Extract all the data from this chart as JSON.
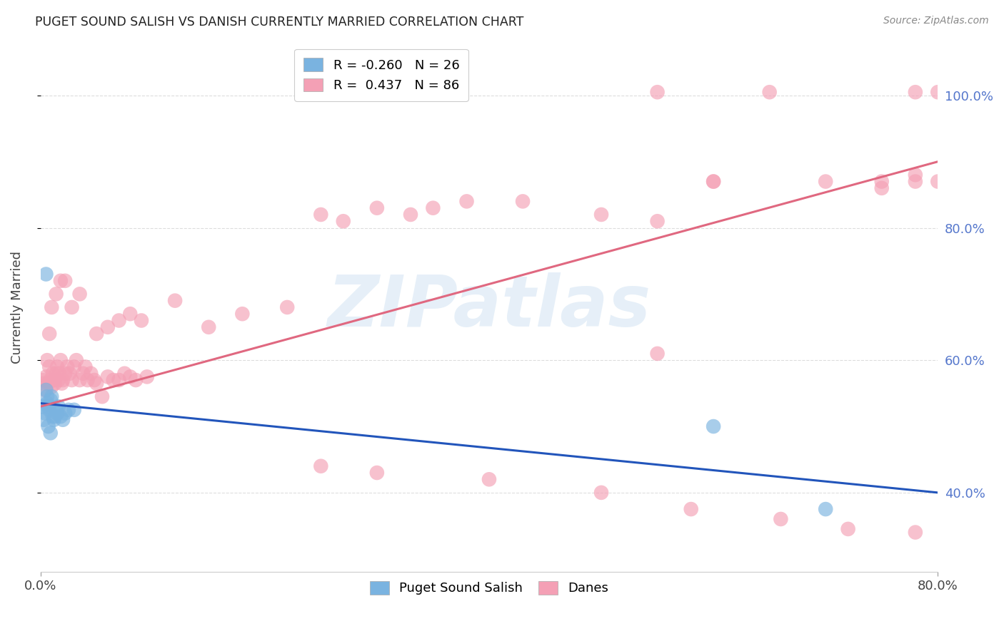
{
  "title": "PUGET SOUND SALISH VS DANISH CURRENTLY MARRIED CORRELATION CHART",
  "source": "Source: ZipAtlas.com",
  "xlim": [
    0.0,
    0.8
  ],
  "ylim": [
    0.28,
    1.08
  ],
  "ylabel": "Currently Married",
  "salish_color": "#7ab3e0",
  "danes_color": "#f4a0b5",
  "salish_line_color": "#2255bb",
  "danes_line_color": "#e06880",
  "background_color": "#ffffff",
  "grid_color": "#dddddd",
  "yticks": [
    0.4,
    0.6,
    0.8,
    1.0
  ],
  "ytick_labels": [
    "40.0%",
    "60.0%",
    "80.0%",
    "100.0%"
  ],
  "xticks": [
    0.0,
    0.8
  ],
  "xtick_labels": [
    "0.0%",
    "80.0%"
  ],
  "salish_line_x0": 0.0,
  "salish_line_y0": 0.535,
  "salish_line_x1": 0.8,
  "salish_line_y1": 0.4,
  "danes_line_x0": 0.0,
  "danes_line_y0": 0.53,
  "danes_line_x1": 0.8,
  "danes_line_y1": 0.9,
  "salish_x": [
    0.002,
    0.003,
    0.004,
    0.005,
    0.006,
    0.006,
    0.007,
    0.008,
    0.009,
    0.01,
    0.011,
    0.012,
    0.013,
    0.014,
    0.015,
    0.016,
    0.018,
    0.02,
    0.022,
    0.025,
    0.005,
    0.007,
    0.009,
    0.6,
    0.7,
    0.03
  ],
  "salish_y": [
    0.53,
    0.51,
    0.52,
    0.555,
    0.545,
    0.535,
    0.53,
    0.525,
    0.54,
    0.545,
    0.515,
    0.51,
    0.515,
    0.525,
    0.52,
    0.53,
    0.515,
    0.51,
    0.52,
    0.525,
    0.73,
    0.5,
    0.49,
    0.5,
    0.375,
    0.525
  ],
  "danes_x": [
    0.002,
    0.003,
    0.004,
    0.005,
    0.006,
    0.007,
    0.008,
    0.009,
    0.01,
    0.011,
    0.012,
    0.013,
    0.014,
    0.015,
    0.016,
    0.017,
    0.018,
    0.019,
    0.02,
    0.022,
    0.024,
    0.026,
    0.028,
    0.03,
    0.032,
    0.035,
    0.038,
    0.04,
    0.042,
    0.045,
    0.048,
    0.05,
    0.055,
    0.06,
    0.065,
    0.07,
    0.075,
    0.08,
    0.085,
    0.095,
    0.008,
    0.01,
    0.014,
    0.018,
    0.022,
    0.028,
    0.035,
    0.05,
    0.06,
    0.07,
    0.08,
    0.09,
    0.12,
    0.15,
    0.18,
    0.22,
    0.25,
    0.3,
    0.27,
    0.33,
    0.38,
    0.43,
    0.5,
    0.55,
    0.6,
    0.7,
    0.75,
    0.78,
    0.55,
    0.65,
    0.78,
    0.8,
    0.6,
    0.75,
    0.78,
    0.8,
    0.4,
    0.5,
    0.58,
    0.72,
    0.25,
    0.3,
    0.35,
    0.55,
    0.66,
    0.78
  ],
  "danes_y": [
    0.57,
    0.565,
    0.555,
    0.575,
    0.6,
    0.565,
    0.59,
    0.57,
    0.56,
    0.58,
    0.57,
    0.565,
    0.58,
    0.59,
    0.57,
    0.58,
    0.6,
    0.565,
    0.57,
    0.58,
    0.59,
    0.58,
    0.57,
    0.59,
    0.6,
    0.57,
    0.58,
    0.59,
    0.57,
    0.58,
    0.57,
    0.565,
    0.545,
    0.575,
    0.57,
    0.57,
    0.58,
    0.575,
    0.57,
    0.575,
    0.64,
    0.68,
    0.7,
    0.72,
    0.72,
    0.68,
    0.7,
    0.64,
    0.65,
    0.66,
    0.67,
    0.66,
    0.69,
    0.65,
    0.67,
    0.68,
    0.44,
    0.43,
    0.81,
    0.82,
    0.84,
    0.84,
    0.82,
    0.81,
    0.87,
    0.87,
    0.86,
    0.88,
    1.005,
    1.005,
    1.005,
    1.005,
    0.87,
    0.87,
    0.87,
    0.87,
    0.42,
    0.4,
    0.375,
    0.345,
    0.82,
    0.83,
    0.83,
    0.61,
    0.36,
    0.34
  ]
}
